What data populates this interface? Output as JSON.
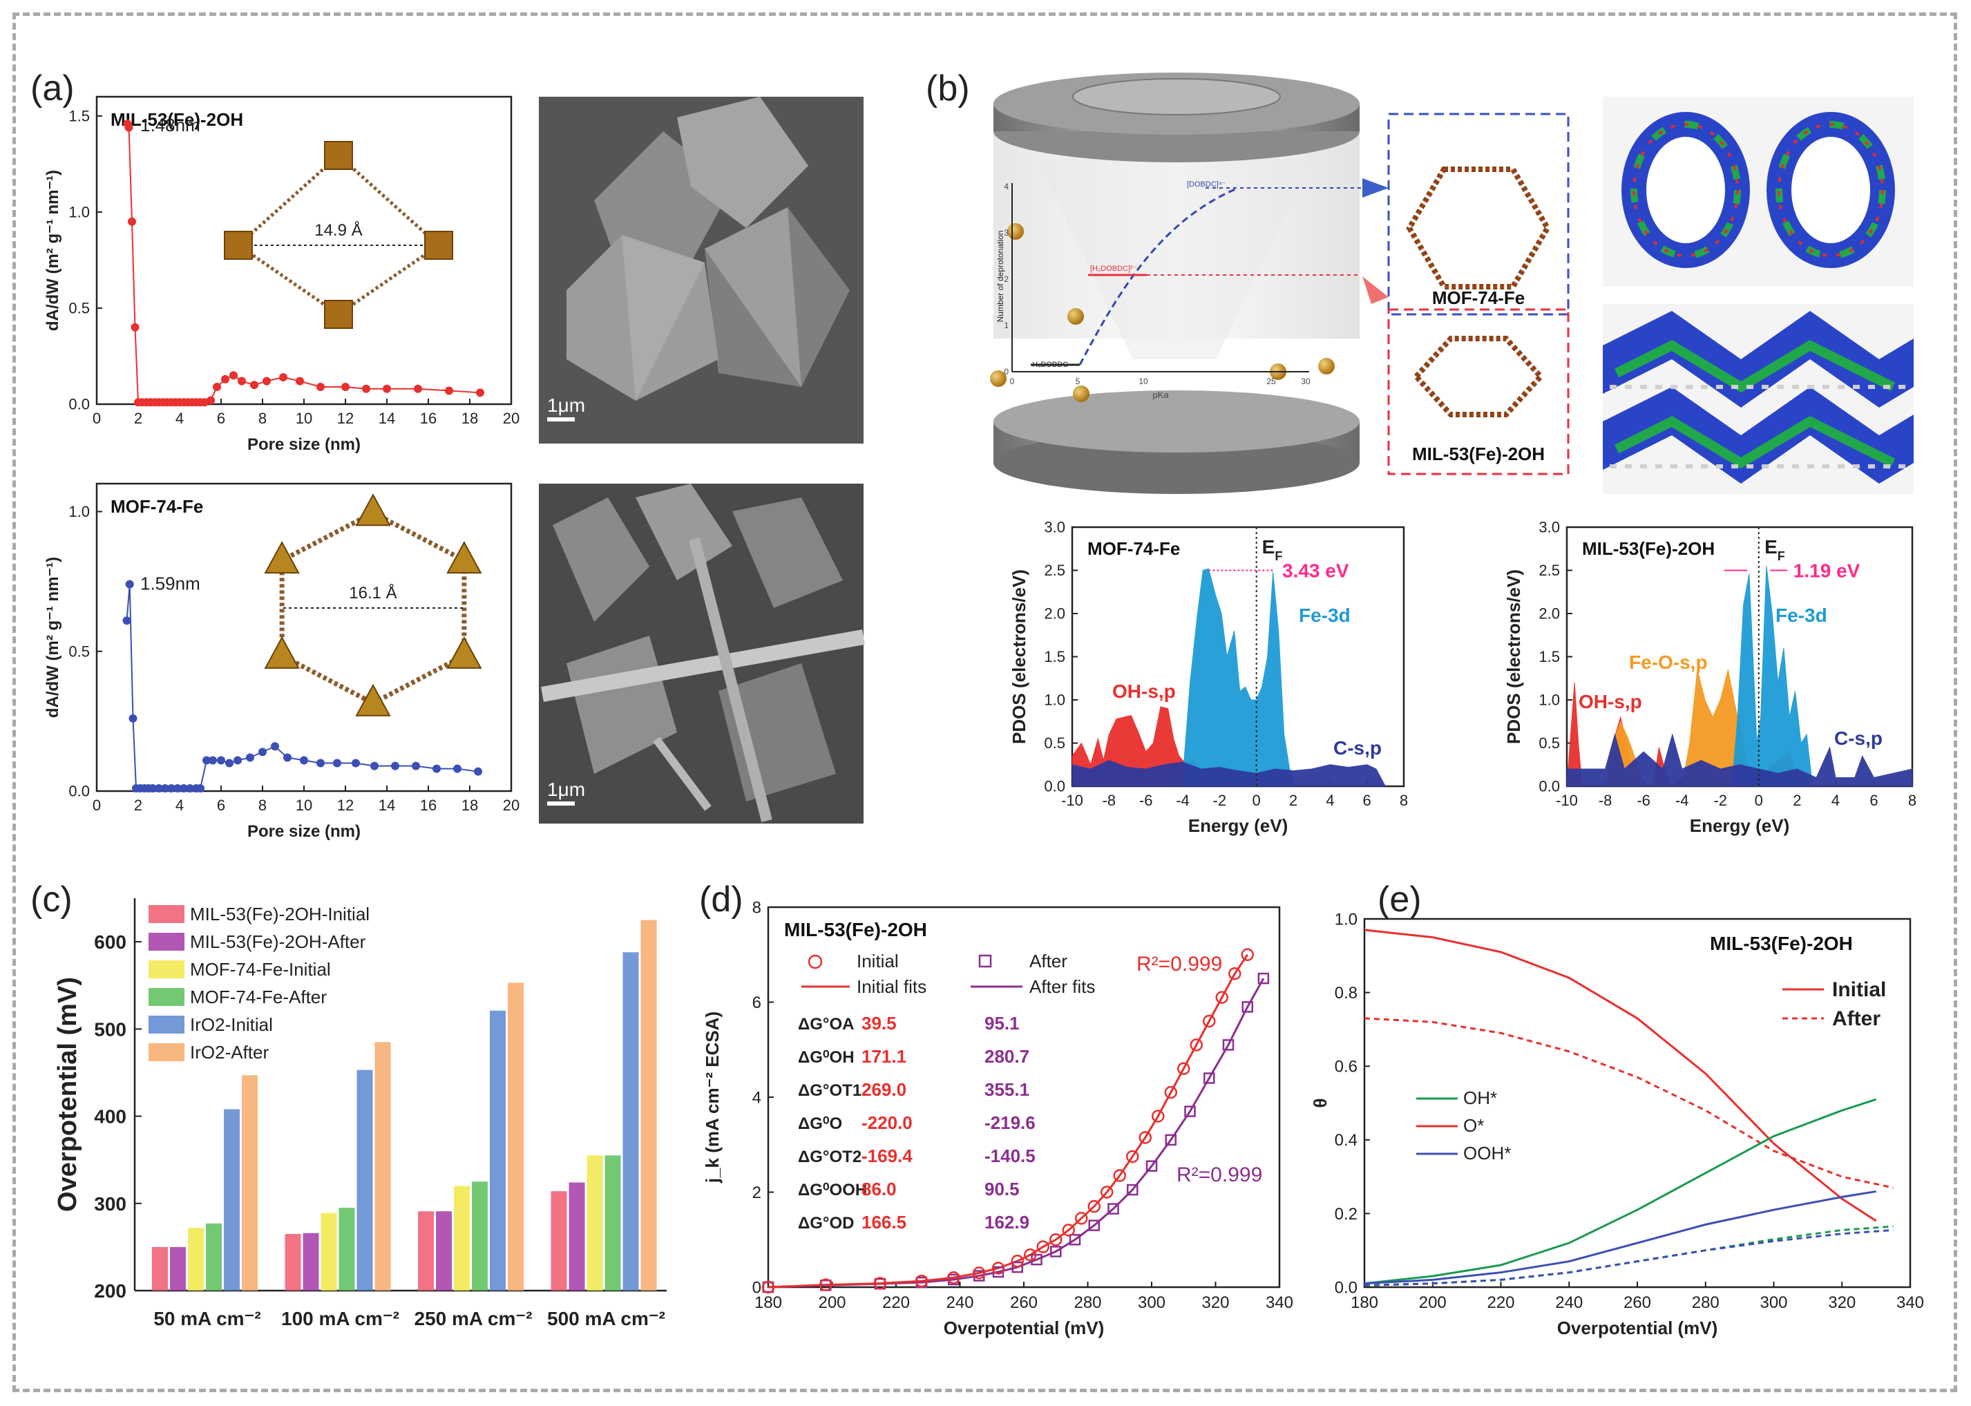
{
  "panels": {
    "a": "(a)",
    "b": "(b)",
    "c": "(c)",
    "d": "(d)",
    "e": "(e)"
  },
  "colors": {
    "red": "#e8302e",
    "blue": "#3b4fb5",
    "cyan": "#1e9bd6",
    "orange": "#f59a23",
    "navy": "#2f3a9e",
    "magenta": "#ff2a8a",
    "purple": "#8b2f8f",
    "green": "#1a9a50"
  },
  "panel_a": {
    "scalebar_1": "1μm",
    "scalebar_2": "1μm",
    "struct_1_label": "14.9 Å",
    "struct_2_label": "16.1 Å"
  },
  "panel_b": {
    "mof74_label": "MOF-74-Fe",
    "mil53_label": "MIL-53(Fe)-2OH",
    "inset_ylabel": "Number of deprotonation",
    "inset_xlabel": "pKa",
    "inset_labels": [
      "[DOBDC]⁴⁻",
      "[H₂DOBDC]²⁻",
      "H₄DOBDC"
    ],
    "inset_xticks": [
      "0",
      "5",
      "10",
      "25",
      "30"
    ],
    "inset_yticks": [
      "0",
      "1",
      "2",
      "3",
      "4"
    ]
  },
  "chart_data": [
    {
      "id": "a1",
      "type": "scatter",
      "title": "MIL-53(Fe)-2OH",
      "xlabel": "Pore size (nm)",
      "ylabel": "dA/dW (m² g⁻¹ nm⁻¹)",
      "xlim": [
        0,
        20
      ],
      "ylim": [
        0,
        1.6
      ],
      "xticks": [
        0,
        2,
        4,
        6,
        8,
        10,
        12,
        14,
        16,
        18,
        20
      ],
      "yticks": [
        0.0,
        0.5,
        1.0,
        1.5
      ],
      "annotation": "1.48nm",
      "x": [
        1.48,
        1.55,
        1.7,
        1.85,
        2.0,
        2.2,
        2.4,
        2.6,
        2.8,
        3.0,
        3.2,
        3.4,
        3.6,
        3.8,
        4.0,
        4.2,
        4.4,
        4.6,
        4.8,
        5.0,
        5.2,
        5.5,
        5.8,
        6.2,
        6.6,
        7.0,
        7.6,
        8.2,
        9.0,
        9.8,
        10.8,
        12.0,
        13.0,
        14.0,
        15.5,
        17.0,
        18.5
      ],
      "values": [
        1.46,
        1.44,
        0.95,
        0.4,
        0.01,
        0.01,
        0.01,
        0.01,
        0.01,
        0.01,
        0.01,
        0.01,
        0.01,
        0.01,
        0.01,
        0.01,
        0.01,
        0.01,
        0.01,
        0.01,
        0.01,
        0.02,
        0.09,
        0.13,
        0.15,
        0.12,
        0.1,
        0.12,
        0.14,
        0.12,
        0.09,
        0.09,
        0.08,
        0.08,
        0.08,
        0.07,
        0.06
      ]
    },
    {
      "id": "a2",
      "type": "scatter",
      "title": "MOF-74-Fe",
      "xlabel": "Pore size (nm)",
      "ylabel": "dA/dW (m² g⁻¹ nm⁻¹)",
      "xlim": [
        0,
        20
      ],
      "ylim": [
        0,
        1.1
      ],
      "xticks": [
        0,
        2,
        4,
        6,
        8,
        10,
        12,
        14,
        16,
        18,
        20
      ],
      "yticks": [
        0.0,
        0.5,
        1.0
      ],
      "annotation": "1.59nm",
      "x": [
        1.45,
        1.59,
        1.75,
        1.9,
        2.1,
        2.3,
        2.5,
        2.7,
        3.0,
        3.3,
        3.6,
        3.9,
        4.2,
        4.5,
        4.8,
        5.0,
        5.3,
        5.6,
        6.0,
        6.4,
        6.8,
        7.4,
        8.0,
        8.6,
        9.2,
        10.0,
        10.8,
        11.6,
        12.5,
        13.4,
        14.4,
        15.4,
        16.4,
        17.4,
        18.4
      ],
      "values": [
        0.61,
        0.74,
        0.26,
        0.01,
        0.01,
        0.01,
        0.01,
        0.01,
        0.01,
        0.01,
        0.01,
        0.01,
        0.01,
        0.01,
        0.01,
        0.01,
        0.11,
        0.11,
        0.11,
        0.1,
        0.11,
        0.12,
        0.14,
        0.16,
        0.12,
        0.11,
        0.1,
        0.1,
        0.1,
        0.09,
        0.09,
        0.09,
        0.08,
        0.08,
        0.07
      ]
    },
    {
      "id": "b1",
      "type": "area",
      "title": "MOF-74-Fe",
      "xlabel": "Energy (eV)",
      "ylabel": "PDOS (electrons/eV)",
      "xlim": [
        -10,
        8
      ],
      "ylim": [
        0,
        3.0
      ],
      "xticks": [
        -10,
        -8,
        -6,
        -4,
        -2,
        0,
        2,
        4,
        6,
        8
      ],
      "yticks": [
        0.0,
        0.5,
        1.0,
        1.5,
        2.0,
        2.5,
        3.0
      ],
      "ef_label": "E",
      "ef_sub": "F",
      "gap_label": "3.43 eV",
      "series": [
        {
          "name": "OH-s,p",
          "x": [
            -10,
            -9.5,
            -9,
            -8.6,
            -8.3,
            -8,
            -7.6,
            -7.2,
            -6.8,
            -6.4,
            -6,
            -5.6,
            -5.2,
            -4.8,
            -4.5,
            -4.2,
            -3.8,
            -3.4,
            -3,
            -2,
            -1,
            0,
            1,
            2
          ],
          "values": [
            0.35,
            0.5,
            0.25,
            0.55,
            0.3,
            0.6,
            0.78,
            0.8,
            0.82,
            0.62,
            0.4,
            0.5,
            0.92,
            0.9,
            0.55,
            0.35,
            0.25,
            0.3,
            0.15,
            0.1,
            0.08,
            0.05,
            0.04,
            0.0
          ]
        },
        {
          "name": "Fe-3d",
          "x": [
            -4,
            -3.6,
            -3.2,
            -2.9,
            -2.6,
            -2.2,
            -1.9,
            -1.6,
            -1.2,
            -0.9,
            -0.6,
            -0.3,
            0,
            0.3,
            0.6,
            0.9,
            1.2,
            1.5,
            1.8,
            2.1
          ],
          "values": [
            0.1,
            1.2,
            2.0,
            2.5,
            2.52,
            2.2,
            2.0,
            1.5,
            1.8,
            1.1,
            1.15,
            1.0,
            1.0,
            1.15,
            1.5,
            2.48,
            1.8,
            0.6,
            0.2,
            0.0
          ]
        },
        {
          "name": "C-s,p",
          "x": [
            -10,
            -9,
            -8,
            -7,
            -6,
            -5,
            -4,
            -3,
            -2,
            -1,
            0,
            1,
            2,
            3,
            4,
            5,
            6,
            6.5,
            7
          ],
          "values": [
            0.25,
            0.2,
            0.3,
            0.22,
            0.2,
            0.25,
            0.28,
            0.2,
            0.22,
            0.18,
            0.15,
            0.2,
            0.18,
            0.2,
            0.25,
            0.22,
            0.25,
            0.2,
            0.0
          ]
        }
      ]
    },
    {
      "id": "b2",
      "type": "area",
      "title": "MIL-53(Fe)-2OH",
      "xlabel": "Energy (eV)",
      "ylabel": "PDOS (electrons/eV)",
      "xlim": [
        -10,
        8
      ],
      "ylim": [
        0,
        3.0
      ],
      "xticks": [
        -10,
        -8,
        -6,
        -4,
        -2,
        0,
        2,
        4,
        6,
        8
      ],
      "yticks": [
        0.0,
        0.5,
        1.0,
        1.5,
        2.0,
        2.5,
        3.0
      ],
      "ef_label": "E",
      "ef_sub": "F",
      "gap_label": "1.19 eV",
      "series": [
        {
          "name": "OH-s,p",
          "x": [
            -10,
            -9.8,
            -9.6,
            -9.4,
            -9.2,
            -8,
            -7.6,
            -7.2,
            -6.8,
            -6.4,
            -5.5,
            -5.2,
            -4.9,
            -4.6,
            -4,
            -3,
            -2,
            -1,
            0,
            1,
            1.6,
            2
          ],
          "values": [
            0.0,
            0.6,
            1.2,
            0.5,
            0.0,
            0.0,
            0.5,
            0.8,
            0.4,
            0.0,
            0.0,
            0.45,
            0.2,
            0.0,
            0.1,
            0.3,
            0.2,
            0.15,
            0.1,
            0.3,
            0.4,
            0.0
          ]
        },
        {
          "name": "Fe-O-s,p",
          "x": [
            -8,
            -7.6,
            -7.2,
            -6.8,
            -6.4,
            -6,
            -4,
            -3.6,
            -3.2,
            -2.8,
            -2.4,
            -2,
            -1.6,
            -1.2,
            -0.8,
            -0.4
          ],
          "values": [
            0.0,
            0.5,
            0.75,
            0.55,
            0.3,
            0.0,
            0.0,
            0.5,
            1.35,
            1.0,
            0.8,
            1.0,
            1.35,
            0.9,
            0.5,
            0.0
          ]
        },
        {
          "name": "Fe-3d",
          "x": [
            -1.4,
            -1.1,
            -0.8,
            -0.5,
            -0.3,
            -0.1,
            0.1,
            0.4,
            0.7,
            1.0,
            1.3,
            1.6,
            1.9,
            2.2,
            2.5,
            2.8
          ],
          "values": [
            0.0,
            0.8,
            2.1,
            2.46,
            1.5,
            0.5,
            0.8,
            2.55,
            2.0,
            1.2,
            1.6,
            0.8,
            1.1,
            0.5,
            0.6,
            0.0
          ]
        },
        {
          "name": "C-s,p",
          "x": [
            -10,
            -8,
            -7.5,
            -7,
            -6,
            -5,
            -4.5,
            -4,
            -3,
            -2,
            -1,
            0,
            1,
            2,
            3,
            3.7,
            4,
            5,
            5.4,
            6,
            7,
            8
          ],
          "values": [
            0.2,
            0.2,
            0.6,
            0.2,
            0.4,
            0.2,
            0.6,
            0.2,
            0.3,
            0.2,
            0.25,
            0.2,
            0.15,
            0.2,
            0.1,
            0.45,
            0.1,
            0.1,
            0.35,
            0.1,
            0.15,
            0.2
          ]
        }
      ]
    },
    {
      "id": "c",
      "type": "bar",
      "xlabel": "",
      "ylabel": "Overpotential (mV)",
      "ylim": [
        200,
        650
      ],
      "yticks": [
        200,
        300,
        400,
        500,
        600
      ],
      "categories": [
        "50 mA cm⁻²",
        "100 mA cm⁻²",
        "250 mA cm⁻²",
        "500 mA cm⁻²"
      ],
      "series": [
        {
          "name": "MIL-53(Fe)-2OH-Initial",
          "color": "#f05a6e",
          "values": [
            250,
            265,
            291,
            314
          ]
        },
        {
          "name": "MIL-53(Fe)-2OH-After",
          "color": "#a63aa8",
          "values": [
            250,
            266,
            291,
            324
          ]
        },
        {
          "name": "MOF-74-Fe-Initial",
          "color": "#f2e84a",
          "values": [
            272,
            289,
            320,
            355
          ]
        },
        {
          "name": "MOF-74-Fe-After",
          "color": "#5bc05b",
          "values": [
            277,
            295,
            325,
            355
          ]
        },
        {
          "name": "IrO2-Initial",
          "color": "#5b87d0",
          "values": [
            408,
            453,
            521,
            588
          ]
        },
        {
          "name": "IrO2-After",
          "color": "#f7a96a",
          "values": [
            447,
            485,
            553,
            625
          ]
        }
      ]
    },
    {
      "id": "d",
      "type": "scatter",
      "title": "MIL-53(Fe)-2OH",
      "xlabel": "Overpotential (mV)",
      "ylabel": "j_k (mA cm⁻² ECSA)",
      "xlim": [
        180,
        340
      ],
      "ylim": [
        0,
        8
      ],
      "xticks": [
        180,
        200,
        220,
        240,
        260,
        280,
        300,
        320,
        340
      ],
      "yticks": [
        0,
        2,
        4,
        6,
        8
      ],
      "legend": [
        "Initial",
        "After",
        "Initial fits",
        "After fits"
      ],
      "r2_initial": "R²=0.999",
      "r2_after": "R²=0.999",
      "table": [
        {
          "label": "ΔG°OA",
          "initial": "39.5",
          "after": "95.1"
        },
        {
          "label": "ΔG⁰OH",
          "initial": "171.1",
          "after": "280.7"
        },
        {
          "label": "ΔG°OT1",
          "initial": "269.0",
          "after": "355.1"
        },
        {
          "label": "ΔG⁰O",
          "initial": "-220.0",
          "after": "-219.6"
        },
        {
          "label": "ΔG°OT2",
          "initial": "-169.4",
          "after": "-140.5"
        },
        {
          "label": "ΔG⁰OOH",
          "initial": "86.0",
          "after": "90.5"
        },
        {
          "label": "ΔG°OD",
          "initial": "166.5",
          "after": "162.9"
        }
      ],
      "series": [
        {
          "name": "Initial",
          "x": [
            180,
            198,
            215,
            228,
            238,
            246,
            252,
            258,
            262,
            266,
            270,
            274,
            278,
            282,
            286,
            290,
            294,
            298,
            302,
            306,
            310,
            314,
            318,
            322,
            326,
            330
          ],
          "values": [
            0.0,
            0.05,
            0.08,
            0.13,
            0.2,
            0.3,
            0.4,
            0.55,
            0.68,
            0.85,
            1.0,
            1.2,
            1.45,
            1.7,
            2.0,
            2.35,
            2.75,
            3.15,
            3.6,
            4.1,
            4.6,
            5.1,
            5.6,
            6.1,
            6.6,
            7.0
          ]
        },
        {
          "name": "After",
          "x": [
            180,
            198,
            215,
            228,
            238,
            246,
            252,
            258,
            264,
            270,
            276,
            282,
            288,
            294,
            300,
            306,
            312,
            318,
            324,
            330,
            335
          ],
          "values": [
            0.0,
            0.04,
            0.07,
            0.1,
            0.16,
            0.24,
            0.32,
            0.42,
            0.58,
            0.75,
            1.0,
            1.3,
            1.65,
            2.05,
            2.55,
            3.1,
            3.7,
            4.4,
            5.1,
            5.9,
            6.5
          ]
        }
      ]
    },
    {
      "id": "e",
      "type": "line",
      "title": "MIL-53(Fe)-2OH",
      "xlabel": "Overpotential (mV)",
      "ylabel": "θ",
      "xlim": [
        180,
        340
      ],
      "ylim": [
        0,
        1.0
      ],
      "xticks": [
        180,
        200,
        220,
        240,
        260,
        280,
        300,
        320,
        340
      ],
      "yticks": [
        0.0,
        0.2,
        0.4,
        0.6,
        0.8,
        1.0
      ],
      "legend_style": [
        "Initial",
        "After"
      ],
      "legend_species": [
        "OH*",
        "O*",
        "OOH*"
      ],
      "series": [
        {
          "name": "O* Initial",
          "x": [
            180,
            200,
            220,
            240,
            260,
            280,
            300,
            320,
            330
          ],
          "values": [
            0.97,
            0.95,
            0.91,
            0.84,
            0.73,
            0.58,
            0.39,
            0.24,
            0.18
          ]
        },
        {
          "name": "O* After",
          "x": [
            180,
            200,
            220,
            240,
            260,
            280,
            300,
            320,
            335
          ],
          "values": [
            0.73,
            0.72,
            0.69,
            0.64,
            0.57,
            0.48,
            0.37,
            0.3,
            0.27
          ]
        },
        {
          "name": "OH* Initial",
          "x": [
            180,
            200,
            220,
            240,
            260,
            280,
            300,
            320,
            330
          ],
          "values": [
            0.01,
            0.03,
            0.06,
            0.12,
            0.21,
            0.31,
            0.41,
            0.48,
            0.51
          ]
        },
        {
          "name": "OH* After",
          "x": [
            180,
            200,
            220,
            240,
            260,
            280,
            300,
            320,
            335
          ],
          "values": [
            0.005,
            0.01,
            0.02,
            0.04,
            0.07,
            0.1,
            0.13,
            0.155,
            0.165
          ]
        },
        {
          "name": "OOH* Initial",
          "x": [
            180,
            200,
            220,
            240,
            260,
            280,
            300,
            320,
            330
          ],
          "values": [
            0.01,
            0.02,
            0.04,
            0.07,
            0.12,
            0.17,
            0.21,
            0.245,
            0.26
          ]
        },
        {
          "name": "OOH* After",
          "x": [
            180,
            200,
            220,
            240,
            260,
            280,
            300,
            320,
            335
          ],
          "values": [
            0.005,
            0.01,
            0.02,
            0.04,
            0.07,
            0.1,
            0.125,
            0.145,
            0.155
          ]
        }
      ]
    }
  ]
}
